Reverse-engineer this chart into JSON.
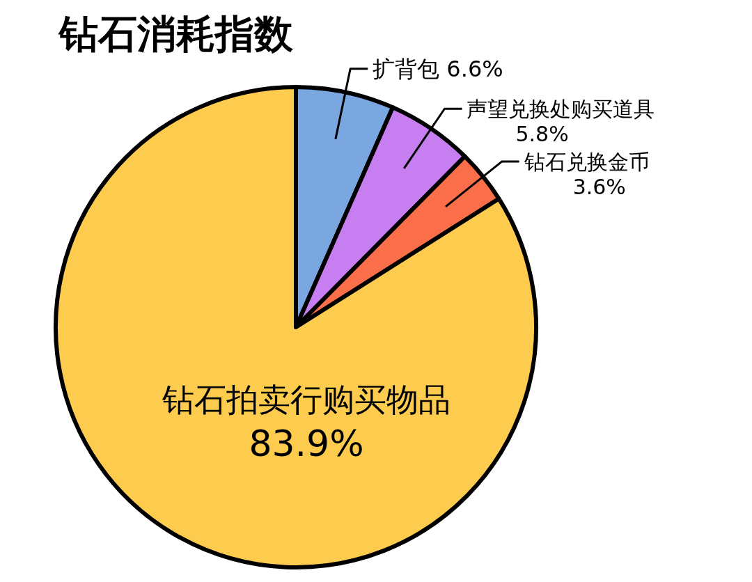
{
  "chart_data": {
    "type": "pie",
    "title": "钻石消耗指数",
    "categories": [
      "扩背包",
      "声望兑换处购买道具",
      "钻石兑换金币",
      "钻石拍卖行购买物品"
    ],
    "values": [
      6.6,
      5.8,
      3.6,
      83.9
    ],
    "value_labels": [
      "6.6%",
      "5.8%",
      "3.6%",
      "83.9%"
    ],
    "colors": [
      "#7ba7e0",
      "#c77ef0",
      "#fa6f4a",
      "#fdcb4e"
    ]
  }
}
